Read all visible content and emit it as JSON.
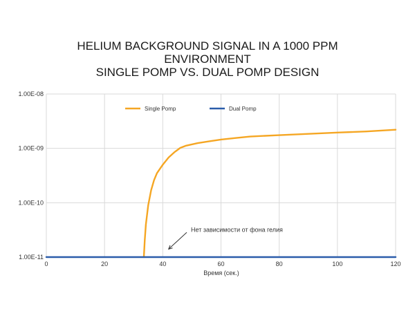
{
  "chart_data": {
    "type": "line",
    "title": [
      "HELIUM BACKGROUND SIGNAL IN A 1000 PPM",
      "ENVIRONMENT",
      "SINGLE POMP VS. DUAL POMP DESIGN"
    ],
    "xlabel": "Время (сек.)",
    "ylabel": "",
    "x_scale": "linear",
    "y_scale": "log",
    "xlim": [
      0,
      120
    ],
    "ylim": [
      1e-11,
      1e-08
    ],
    "x_ticks": [
      0,
      20,
      40,
      60,
      80,
      100,
      120
    ],
    "x_tick_labels": [
      "0",
      "20",
      "40",
      "60",
      "80",
      "100",
      "120"
    ],
    "y_ticks": [
      1e-11,
      1e-10,
      1e-09,
      1e-08
    ],
    "y_tick_labels": [
      "1.00E-11",
      "1.00E-10",
      "1.00E-09",
      "1.00E-08"
    ],
    "grid": true,
    "legend_position": "top-center",
    "series": [
      {
        "name": "Single Pomp",
        "color": "#f5a623",
        "points": [
          [
            33.5,
            1e-11
          ],
          [
            33.8,
            2e-11
          ],
          [
            34.2,
            4e-11
          ],
          [
            35,
            9e-11
          ],
          [
            36,
            1.7e-10
          ],
          [
            37,
            2.6e-10
          ],
          [
            38,
            3.5e-10
          ],
          [
            40,
            5e-10
          ],
          [
            42,
            6.8e-10
          ],
          [
            44,
            8.5e-10
          ],
          [
            46,
            1.02e-09
          ],
          [
            48,
            1.12e-09
          ],
          [
            52,
            1.25e-09
          ],
          [
            56,
            1.35e-09
          ],
          [
            60,
            1.45e-09
          ],
          [
            65,
            1.55e-09
          ],
          [
            70,
            1.65e-09
          ],
          [
            80,
            1.75e-09
          ],
          [
            90,
            1.85e-09
          ],
          [
            100,
            1.95e-09
          ],
          [
            110,
            2.05e-09
          ],
          [
            120,
            2.2e-09
          ]
        ]
      },
      {
        "name": "Dual Pomp",
        "color": "#2a5caa",
        "points": [
          [
            0,
            1e-11
          ],
          [
            120,
            1e-11
          ]
        ]
      }
    ],
    "annotations": [
      {
        "text": "Нет зависимости от фона гелия",
        "x": 48,
        "y": 3.2e-11,
        "arrow_to": [
          42,
          1.4e-11
        ]
      }
    ]
  }
}
